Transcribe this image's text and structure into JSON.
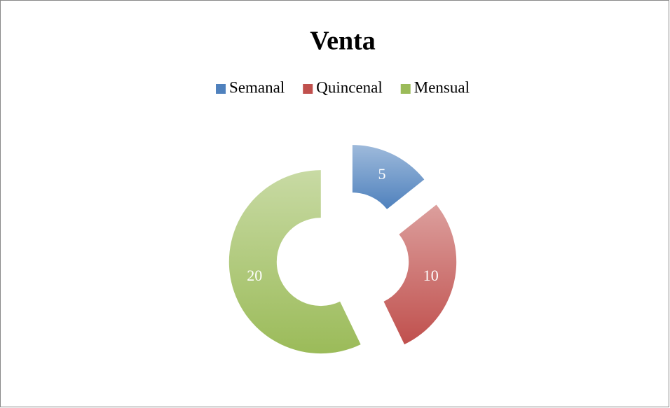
{
  "chart_data": {
    "type": "donut",
    "title": "Venta",
    "categories": [
      "Semanal",
      "Quincenal",
      "Mensual"
    ],
    "values": [
      5,
      10,
      20
    ],
    "colors": [
      "#4f81bd",
      "#c0504d",
      "#9bbb59"
    ],
    "legend": "top"
  }
}
